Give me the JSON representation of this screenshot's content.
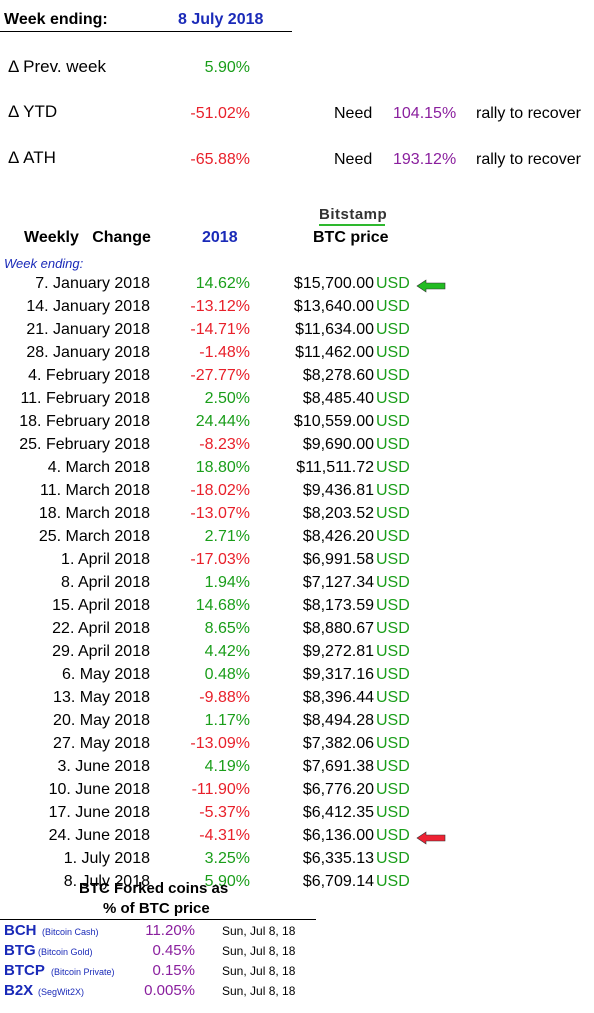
{
  "header": {
    "week_ending_label": "Week ending:",
    "week_ending_date": "8 July 2018"
  },
  "metrics": [
    {
      "label": "Δ Prev. week",
      "value": "5.90%",
      "color": "#1a9e1a",
      "need": "",
      "need_value": "",
      "rally": ""
    },
    {
      "label": "Δ YTD",
      "value": "-51.02%",
      "color": "#e8202a",
      "need": "Need",
      "need_value": "104.15%",
      "rally": "rally to recover"
    },
    {
      "label": "Δ ATH",
      "value": "-65.88%",
      "color": "#e8202a",
      "need": "Need",
      "need_value": "193.12%",
      "rally": "rally to recover"
    }
  ],
  "table": {
    "bitstamp": "Bitstamp",
    "col_change": "Weekly   Change",
    "col_year": "2018",
    "col_price": "BTC price",
    "week_ending_note": "Week ending:",
    "currency": "USD",
    "rows": [
      {
        "date": "7. January 2018",
        "pct": "14.62%",
        "price": "$15,700.00",
        "arrow": "left-arrow-green"
      },
      {
        "date": "14. January 2018",
        "pct": "-13.12%",
        "price": "$13,640.00"
      },
      {
        "date": "21. January 2018",
        "pct": "-14.71%",
        "price": "$11,634.00"
      },
      {
        "date": "28. January 2018",
        "pct": "-1.48%",
        "price": "$11,462.00"
      },
      {
        "date": "4. February 2018",
        "pct": "-27.77%",
        "price": "$8,278.60"
      },
      {
        "date": "11. February 2018",
        "pct": "2.50%",
        "price": "$8,485.40"
      },
      {
        "date": "18. February 2018",
        "pct": "24.44%",
        "price": "$10,559.00"
      },
      {
        "date": "25. February 2018",
        "pct": "-8.23%",
        "price": "$9,690.00"
      },
      {
        "date": "4. March 2018",
        "pct": "18.80%",
        "price": "$11,511.72"
      },
      {
        "date": "11. March 2018",
        "pct": "-18.02%",
        "price": "$9,436.81"
      },
      {
        "date": "18. March 2018",
        "pct": "-13.07%",
        "price": "$8,203.52"
      },
      {
        "date": "25. March 2018",
        "pct": "2.71%",
        "price": "$8,426.20"
      },
      {
        "date": "1. April 2018",
        "pct": "-17.03%",
        "price": "$6,991.58"
      },
      {
        "date": "8. April 2018",
        "pct": "1.94%",
        "price": "$7,127.34"
      },
      {
        "date": "15. April 2018",
        "pct": "14.68%",
        "price": "$8,173.59"
      },
      {
        "date": "22. April 2018",
        "pct": "8.65%",
        "price": "$8,880.67"
      },
      {
        "date": "29. April 2018",
        "pct": "4.42%",
        "price": "$9,272.81"
      },
      {
        "date": "6. May 2018",
        "pct": "0.48%",
        "price": "$9,317.16"
      },
      {
        "date": "13. May 2018",
        "pct": "-9.88%",
        "price": "$8,396.44"
      },
      {
        "date": "20. May 2018",
        "pct": "1.17%",
        "price": "$8,494.28"
      },
      {
        "date": "27. May 2018",
        "pct": "-13.09%",
        "price": "$7,382.06"
      },
      {
        "date": "3. June 2018",
        "pct": "4.19%",
        "price": "$7,691.38"
      },
      {
        "date": "10. June 2018",
        "pct": "-11.90%",
        "price": "$6,776.20"
      },
      {
        "date": "17. June 2018",
        "pct": "-5.37%",
        "price": "$6,412.35"
      },
      {
        "date": "24. June 2018",
        "pct": "-4.31%",
        "price": "$6,136.00",
        "arrow": "left-arrow-red"
      },
      {
        "date": "1. July 2018",
        "pct": "3.25%",
        "price": "$6,335.13"
      },
      {
        "date": "8. July 2018",
        "pct": "5.90%",
        "price": "$6,709.14"
      }
    ]
  },
  "forked": {
    "title_line1": "BTC Forked coins as",
    "title_line2": "% of BTC price",
    "coins": [
      {
        "code": "BCH",
        "name": "(Bitcoin Cash)",
        "pct": "11.20%",
        "date": "Sun, Jul 8, 18"
      },
      {
        "code": "BTG",
        "name": "(Bitcoin Gold)",
        "pct": "0.45%",
        "date": "Sun, Jul 8, 18"
      },
      {
        "code": "BTCP",
        "name": "(Bitcoin Private)",
        "pct": "0.15%",
        "date": "Sun, Jul 8, 18"
      },
      {
        "code": "B2X",
        "name": "(SegWit2X)",
        "pct": "0.005%",
        "date": "Sun, Jul 8, 18"
      }
    ]
  },
  "colors": {
    "positive": "#1a9e1a",
    "negative": "#e8202a",
    "accent_blue": "#1a2ab8",
    "accent_purple": "#8a1f9e",
    "arrow_green": "#22bb22",
    "arrow_red": "#ee2233"
  }
}
